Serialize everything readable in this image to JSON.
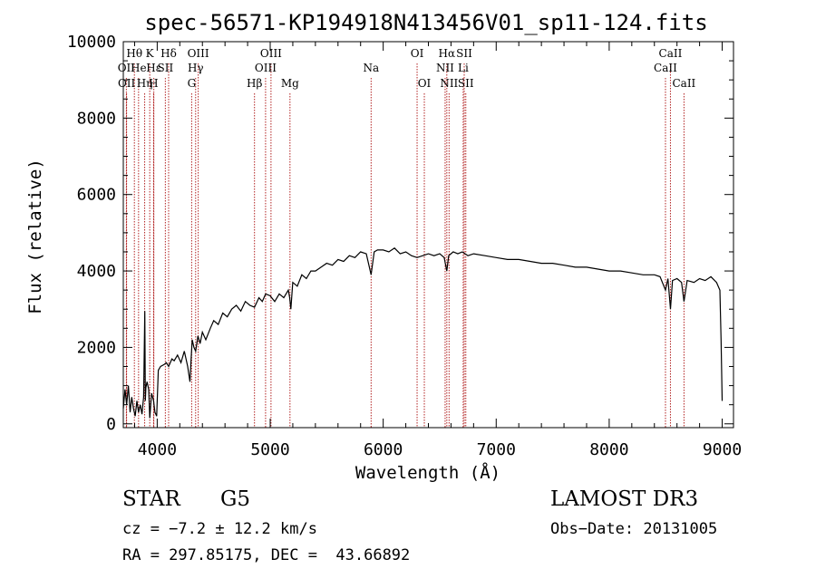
{
  "chart_data": {
    "type": "line",
    "title": "spec-56571-KP194918N413456V01_sp11-124.fits",
    "xlabel": "Wavelength (Å)",
    "ylabel": "Flux (relative)",
    "xlim": [
      3700,
      9100
    ],
    "ylim": [
      -100,
      10000
    ],
    "xticks": [
      4000,
      5000,
      6000,
      7000,
      8000,
      9000
    ],
    "yticks": [
      0,
      2000,
      4000,
      6000,
      8000,
      10000
    ],
    "series": [
      {
        "name": "spectrum",
        "x": [
          3700,
          3715,
          3730,
          3745,
          3760,
          3775,
          3790,
          3805,
          3820,
          3835,
          3850,
          3865,
          3880,
          3890,
          3895,
          3900,
          3910,
          3925,
          3934,
          3950,
          3968,
          3980,
          3995,
          4010,
          4030,
          4060,
          4080,
          4101,
          4130,
          4150,
          4180,
          4210,
          4240,
          4270,
          4290,
          4300,
          4310,
          4325,
          4340,
          4360,
          4380,
          4400,
          4430,
          4470,
          4500,
          4540,
          4580,
          4620,
          4660,
          4700,
          4740,
          4780,
          4820,
          4861,
          4900,
          4930,
          4960,
          5000,
          5040,
          5080,
          5120,
          5160,
          5172,
          5183,
          5200,
          5240,
          5280,
          5320,
          5360,
          5400,
          5450,
          5500,
          5550,
          5600,
          5650,
          5700,
          5750,
          5800,
          5850,
          5893,
          5920,
          5950,
          6000,
          6050,
          6100,
          6150,
          6200,
          6250,
          6300,
          6350,
          6400,
          6450,
          6500,
          6540,
          6563,
          6580,
          6620,
          6660,
          6700,
          6750,
          6800,
          6900,
          7000,
          7100,
          7200,
          7300,
          7400,
          7500,
          7600,
          7700,
          7800,
          7900,
          8000,
          8100,
          8200,
          8300,
          8400,
          8450,
          8498,
          8520,
          8542,
          8560,
          8600,
          8640,
          8662,
          8690,
          8750,
          8800,
          8850,
          8900,
          8950,
          8980,
          8990,
          9000
        ],
        "values": [
          400,
          900,
          500,
          1000,
          300,
          700,
          400,
          200,
          600,
          300,
          500,
          250,
          700,
          2950,
          600,
          950,
          1100,
          900,
          150,
          800,
          600,
          300,
          200,
          1400,
          1500,
          1550,
          1600,
          1500,
          1700,
          1650,
          1800,
          1600,
          1900,
          1500,
          1100,
          1700,
          2200,
          2000,
          1900,
          2300,
          2100,
          2400,
          2200,
          2500,
          2700,
          2600,
          2900,
          2800,
          3000,
          3100,
          2950,
          3200,
          3100,
          3050,
          3300,
          3200,
          3400,
          3350,
          3200,
          3400,
          3300,
          3500,
          3300,
          3000,
          3700,
          3600,
          3900,
          3800,
          4000,
          4000,
          4100,
          4200,
          4150,
          4300,
          4250,
          4400,
          4350,
          4500,
          4450,
          3900,
          4500,
          4550,
          4550,
          4500,
          4600,
          4450,
          4500,
          4400,
          4350,
          4400,
          4450,
          4400,
          4450,
          4350,
          4000,
          4400,
          4500,
          4450,
          4500,
          4400,
          4450,
          4400,
          4350,
          4300,
          4300,
          4250,
          4200,
          4200,
          4150,
          4100,
          4100,
          4050,
          4000,
          4000,
          3950,
          3900,
          3900,
          3850,
          3500,
          3800,
          3000,
          3750,
          3800,
          3700,
          3200,
          3750,
          3700,
          3800,
          3750,
          3850,
          3700,
          3500,
          2200,
          600
        ]
      }
    ],
    "lines": [
      {
        "label": "Hθ",
        "x": 3798,
        "row": 0
      },
      {
        "label": "OII",
        "x": 3727,
        "row": 1
      },
      {
        "label": "OII",
        "x": 3729,
        "row": 2
      },
      {
        "label": "He",
        "x": 3835,
        "row": 1
      },
      {
        "label": "Hη",
        "x": 3889,
        "row": 2
      },
      {
        "label": "K",
        "x": 3934,
        "row": 0
      },
      {
        "label": "H",
        "x": 3968,
        "row": 2
      },
      {
        "label": "Hε",
        "x": 3970,
        "row": 1
      },
      {
        "label": "SII",
        "x": 4072,
        "row": 1
      },
      {
        "label": "Hδ",
        "x": 4101,
        "row": 0
      },
      {
        "label": "OIII",
        "x": 4363,
        "row": 0
      },
      {
        "label": "Hγ",
        "x": 4340,
        "row": 1
      },
      {
        "label": "G",
        "x": 4305,
        "row": 2
      },
      {
        "label": "Hβ",
        "x": 4861,
        "row": 2
      },
      {
        "label": "OIII",
        "x": 5007,
        "row": 0
      },
      {
        "label": "OIII",
        "x": 4959,
        "row": 1
      },
      {
        "label": "Mg",
        "x": 5175,
        "row": 2
      },
      {
        "label": "Na",
        "x": 5893,
        "row": 1
      },
      {
        "label": "OI",
        "x": 6300,
        "row": 0
      },
      {
        "label": "OI",
        "x": 6364,
        "row": 2
      },
      {
        "label": "Hα",
        "x": 6563,
        "row": 0
      },
      {
        "label": "NII",
        "x": 6548,
        "row": 1
      },
      {
        "label": "NII",
        "x": 6583,
        "row": 2
      },
      {
        "label": "SII",
        "x": 6717,
        "row": 0
      },
      {
        "label": "Li",
        "x": 6708,
        "row": 1
      },
      {
        "label": "SII",
        "x": 6731,
        "row": 2
      },
      {
        "label": "CaII",
        "x": 8542,
        "row": 0
      },
      {
        "label": "CaII",
        "x": 8498,
        "row": 1
      },
      {
        "label": "CaII",
        "x": 8662,
        "row": 2
      }
    ],
    "colors": {
      "spectrum": "#000000",
      "lines": "#b22222"
    }
  },
  "info": {
    "class": "STAR",
    "subclass": "G5",
    "survey": "LAMOST DR3",
    "cz": "cz = −7.2 ± 12.2 km/s",
    "obs_date": "Obs−Date: 20131005",
    "coords": "RA = 297.85175, DEC =  43.66892"
  }
}
